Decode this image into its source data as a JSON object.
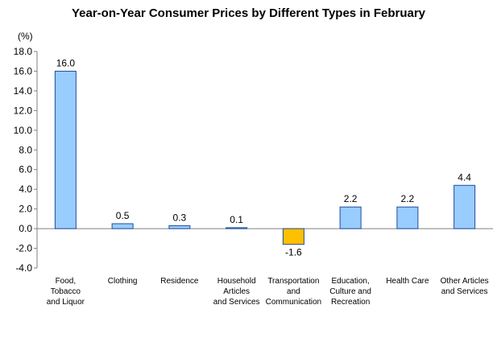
{
  "chart_data": {
    "type": "bar",
    "title": "Year-on-Year Consumer Prices by Different Types in February",
    "unit": "(%)",
    "xlabel": "",
    "ylabel": "",
    "ylim": [
      -4.0,
      18.0
    ],
    "yticks": [
      "18.0",
      "16.0",
      "14.0",
      "12.0",
      "10.0",
      "8.0",
      "6.0",
      "4.0",
      "2.0",
      "0.0",
      "-2.0",
      "-4.0"
    ],
    "categories": [
      [
        "Food,",
        "Tobacco",
        "and Liquor"
      ],
      [
        "Clothing"
      ],
      [
        "Residence"
      ],
      [
        "Household",
        "Articles",
        "and Services"
      ],
      [
        "Transportation",
        "and",
        "Communication"
      ],
      [
        "Education,",
        "Culture and",
        "Recreation"
      ],
      [
        "Health Care"
      ],
      [
        "Other Articles",
        "and Services"
      ]
    ],
    "values": [
      16.0,
      0.5,
      0.3,
      0.1,
      -1.6,
      2.2,
      2.2,
      4.4
    ],
    "data_labels": [
      "16.0",
      "0.5",
      "0.3",
      "0.1",
      "-1.6",
      "2.2",
      "2.2",
      "4.4"
    ],
    "grid": false,
    "legend": "none",
    "colors": {
      "positive": "#99ccff",
      "negative": "#ffc000",
      "bar_stroke": "#1f4e9c",
      "axis": "#808080"
    }
  }
}
